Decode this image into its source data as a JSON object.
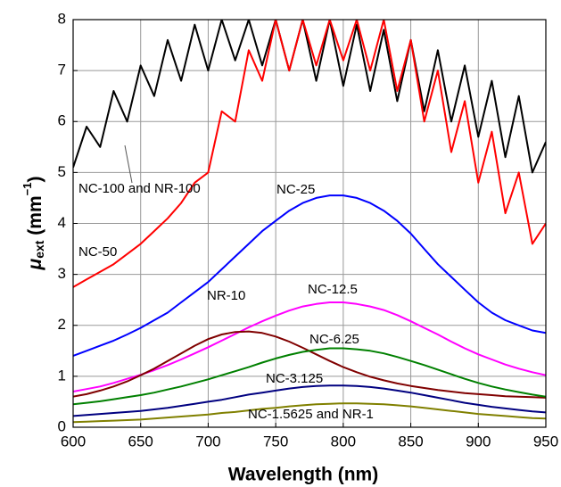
{
  "chart_data": {
    "type": "line",
    "xlabel": "Wavelength (nm)",
    "ylabel_parts": [
      "μ",
      "ext",
      " (mm",
      "−1",
      ")"
    ],
    "xlim": [
      600,
      950
    ],
    "xticks": [
      600,
      650,
      700,
      750,
      800,
      850,
      900,
      950
    ],
    "ylim": [
      0,
      8
    ],
    "yticks": [
      0,
      1,
      2,
      3,
      4,
      5,
      6,
      7,
      8
    ],
    "grid": true,
    "x": [
      600,
      610,
      620,
      630,
      640,
      650,
      660,
      670,
      680,
      690,
      700,
      710,
      720,
      730,
      740,
      750,
      760,
      770,
      780,
      790,
      800,
      810,
      820,
      830,
      840,
      850,
      860,
      870,
      880,
      890,
      900,
      910,
      920,
      930,
      940,
      950
    ],
    "series": [
      {
        "name": "NC-100 and NR-100",
        "color": "#000000",
        "values": [
          5.1,
          5.9,
          5.5,
          6.6,
          6.0,
          7.1,
          6.5,
          7.6,
          6.8,
          7.9,
          7.0,
          8.0,
          7.2,
          8.0,
          7.1,
          8.0,
          7.0,
          8.0,
          6.8,
          8.0,
          6.7,
          7.9,
          6.6,
          7.8,
          6.4,
          7.6,
          6.2,
          7.4,
          6.0,
          7.1,
          5.7,
          6.8,
          5.3,
          6.5,
          5.0,
          5.6
        ]
      },
      {
        "name": "NC-50",
        "color": "#ff0000",
        "values": [
          2.75,
          2.9,
          3.05,
          3.2,
          3.4,
          3.6,
          3.85,
          4.1,
          4.4,
          4.8,
          5.0,
          6.2,
          6.0,
          7.4,
          6.8,
          8.0,
          7.0,
          8.0,
          7.1,
          8.0,
          7.2,
          8.0,
          7.0,
          8.0,
          6.6,
          7.6,
          6.0,
          7.0,
          5.4,
          6.4,
          4.8,
          5.8,
          4.2,
          5.0,
          3.6,
          4.0
        ]
      },
      {
        "name": "NC-25",
        "color": "#0000ff",
        "values": [
          1.4,
          1.5,
          1.6,
          1.7,
          1.82,
          1.95,
          2.1,
          2.25,
          2.45,
          2.65,
          2.85,
          3.1,
          3.35,
          3.6,
          3.85,
          4.05,
          4.25,
          4.4,
          4.5,
          4.55,
          4.55,
          4.5,
          4.4,
          4.25,
          4.05,
          3.8,
          3.5,
          3.2,
          2.95,
          2.7,
          2.45,
          2.25,
          2.1,
          2.0,
          1.9,
          1.85
        ]
      },
      {
        "name": "NC-12.5",
        "color": "#ff00ff",
        "values": [
          0.7,
          0.75,
          0.8,
          0.87,
          0.95,
          1.03,
          1.12,
          1.22,
          1.33,
          1.45,
          1.57,
          1.7,
          1.83,
          1.96,
          2.08,
          2.19,
          2.29,
          2.37,
          2.42,
          2.45,
          2.45,
          2.42,
          2.37,
          2.3,
          2.2,
          2.08,
          1.95,
          1.82,
          1.68,
          1.55,
          1.43,
          1.33,
          1.23,
          1.15,
          1.08,
          1.02
        ]
      },
      {
        "name": "NR-10",
        "color": "#800000",
        "values": [
          0.6,
          0.65,
          0.72,
          0.8,
          0.9,
          1.02,
          1.15,
          1.3,
          1.45,
          1.6,
          1.73,
          1.82,
          1.87,
          1.88,
          1.85,
          1.78,
          1.68,
          1.56,
          1.43,
          1.3,
          1.18,
          1.08,
          0.99,
          0.92,
          0.86,
          0.81,
          0.77,
          0.73,
          0.7,
          0.67,
          0.65,
          0.63,
          0.61,
          0.6,
          0.59,
          0.58
        ]
      },
      {
        "name": "NC-6.25",
        "color": "#008000",
        "values": [
          0.45,
          0.48,
          0.51,
          0.55,
          0.59,
          0.63,
          0.68,
          0.74,
          0.8,
          0.87,
          0.94,
          1.02,
          1.1,
          1.18,
          1.27,
          1.35,
          1.42,
          1.48,
          1.52,
          1.55,
          1.55,
          1.53,
          1.5,
          1.45,
          1.38,
          1.3,
          1.22,
          1.13,
          1.04,
          0.95,
          0.87,
          0.8,
          0.74,
          0.69,
          0.64,
          0.6
        ]
      },
      {
        "name": "NC-3.125",
        "color": "#000080",
        "values": [
          0.22,
          0.24,
          0.26,
          0.28,
          0.3,
          0.32,
          0.35,
          0.38,
          0.42,
          0.46,
          0.5,
          0.54,
          0.59,
          0.64,
          0.68,
          0.72,
          0.76,
          0.79,
          0.81,
          0.82,
          0.82,
          0.81,
          0.79,
          0.76,
          0.72,
          0.68,
          0.63,
          0.58,
          0.53,
          0.48,
          0.44,
          0.4,
          0.37,
          0.34,
          0.31,
          0.29
        ]
      },
      {
        "name": "NC-1.5625 and NR-1",
        "color": "#808000",
        "values": [
          0.1,
          0.11,
          0.12,
          0.13,
          0.14,
          0.15,
          0.17,
          0.19,
          0.21,
          0.23,
          0.25,
          0.28,
          0.3,
          0.33,
          0.36,
          0.38,
          0.41,
          0.43,
          0.45,
          0.46,
          0.47,
          0.47,
          0.46,
          0.45,
          0.43,
          0.41,
          0.38,
          0.35,
          0.32,
          0.29,
          0.26,
          0.24,
          0.22,
          0.2,
          0.18,
          0.17
        ]
      }
    ]
  }
}
